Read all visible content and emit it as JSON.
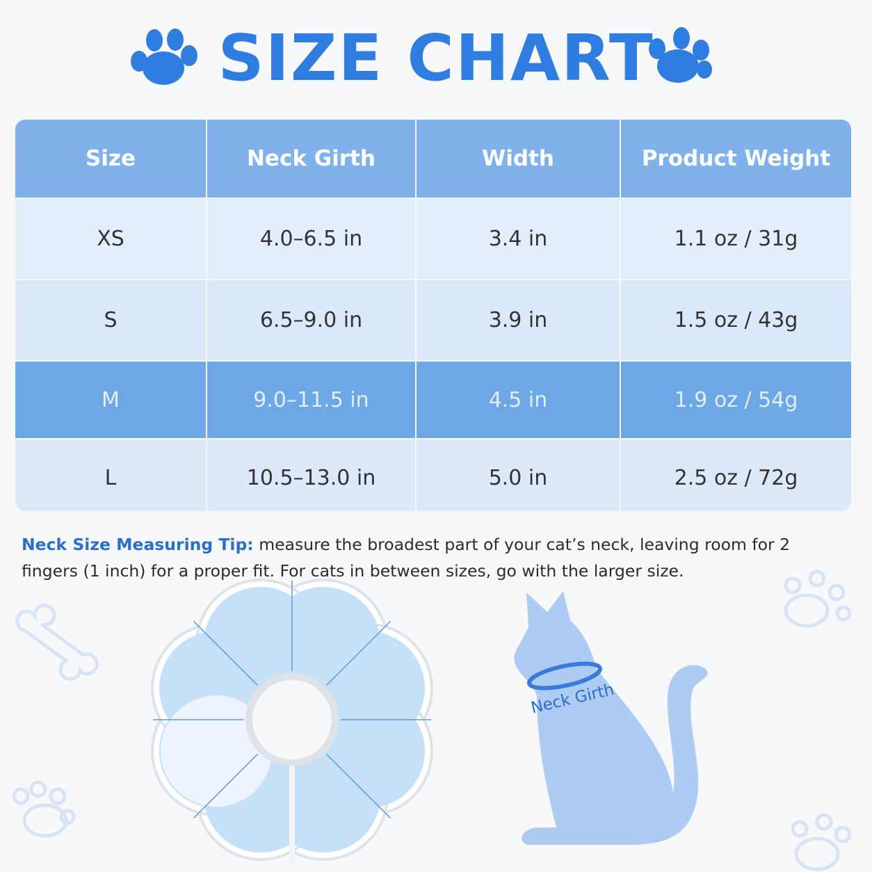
{
  "title": "SIZE CHART",
  "table": {
    "header": [
      "Size",
      "Neck Girth",
      "Width",
      "Product Weight"
    ],
    "rows": [
      [
        "XS",
        "4.0–6.5 in",
        "3.4 in",
        "1.1 oz / 31g"
      ],
      [
        "S",
        "6.5–9.0 in",
        "3.9 in",
        "1.5 oz / 43g"
      ],
      [
        "M",
        "9.0–11.5 in",
        "4.5 in",
        "1.9 oz / 54g"
      ],
      [
        "L",
        "10.5–13.0 in",
        "5.0 in",
        "2.5 oz / 72g"
      ]
    ]
  },
  "tip": {
    "label": "Neck Size Measuring Tip:",
    "text": "measure the broadest part of your cat’s neck, leaving room for 2 fingers (1 inch) for a proper fit. For cats in between sizes, go with the larger size."
  },
  "diagram": {
    "label": "Neck Girth"
  }
}
